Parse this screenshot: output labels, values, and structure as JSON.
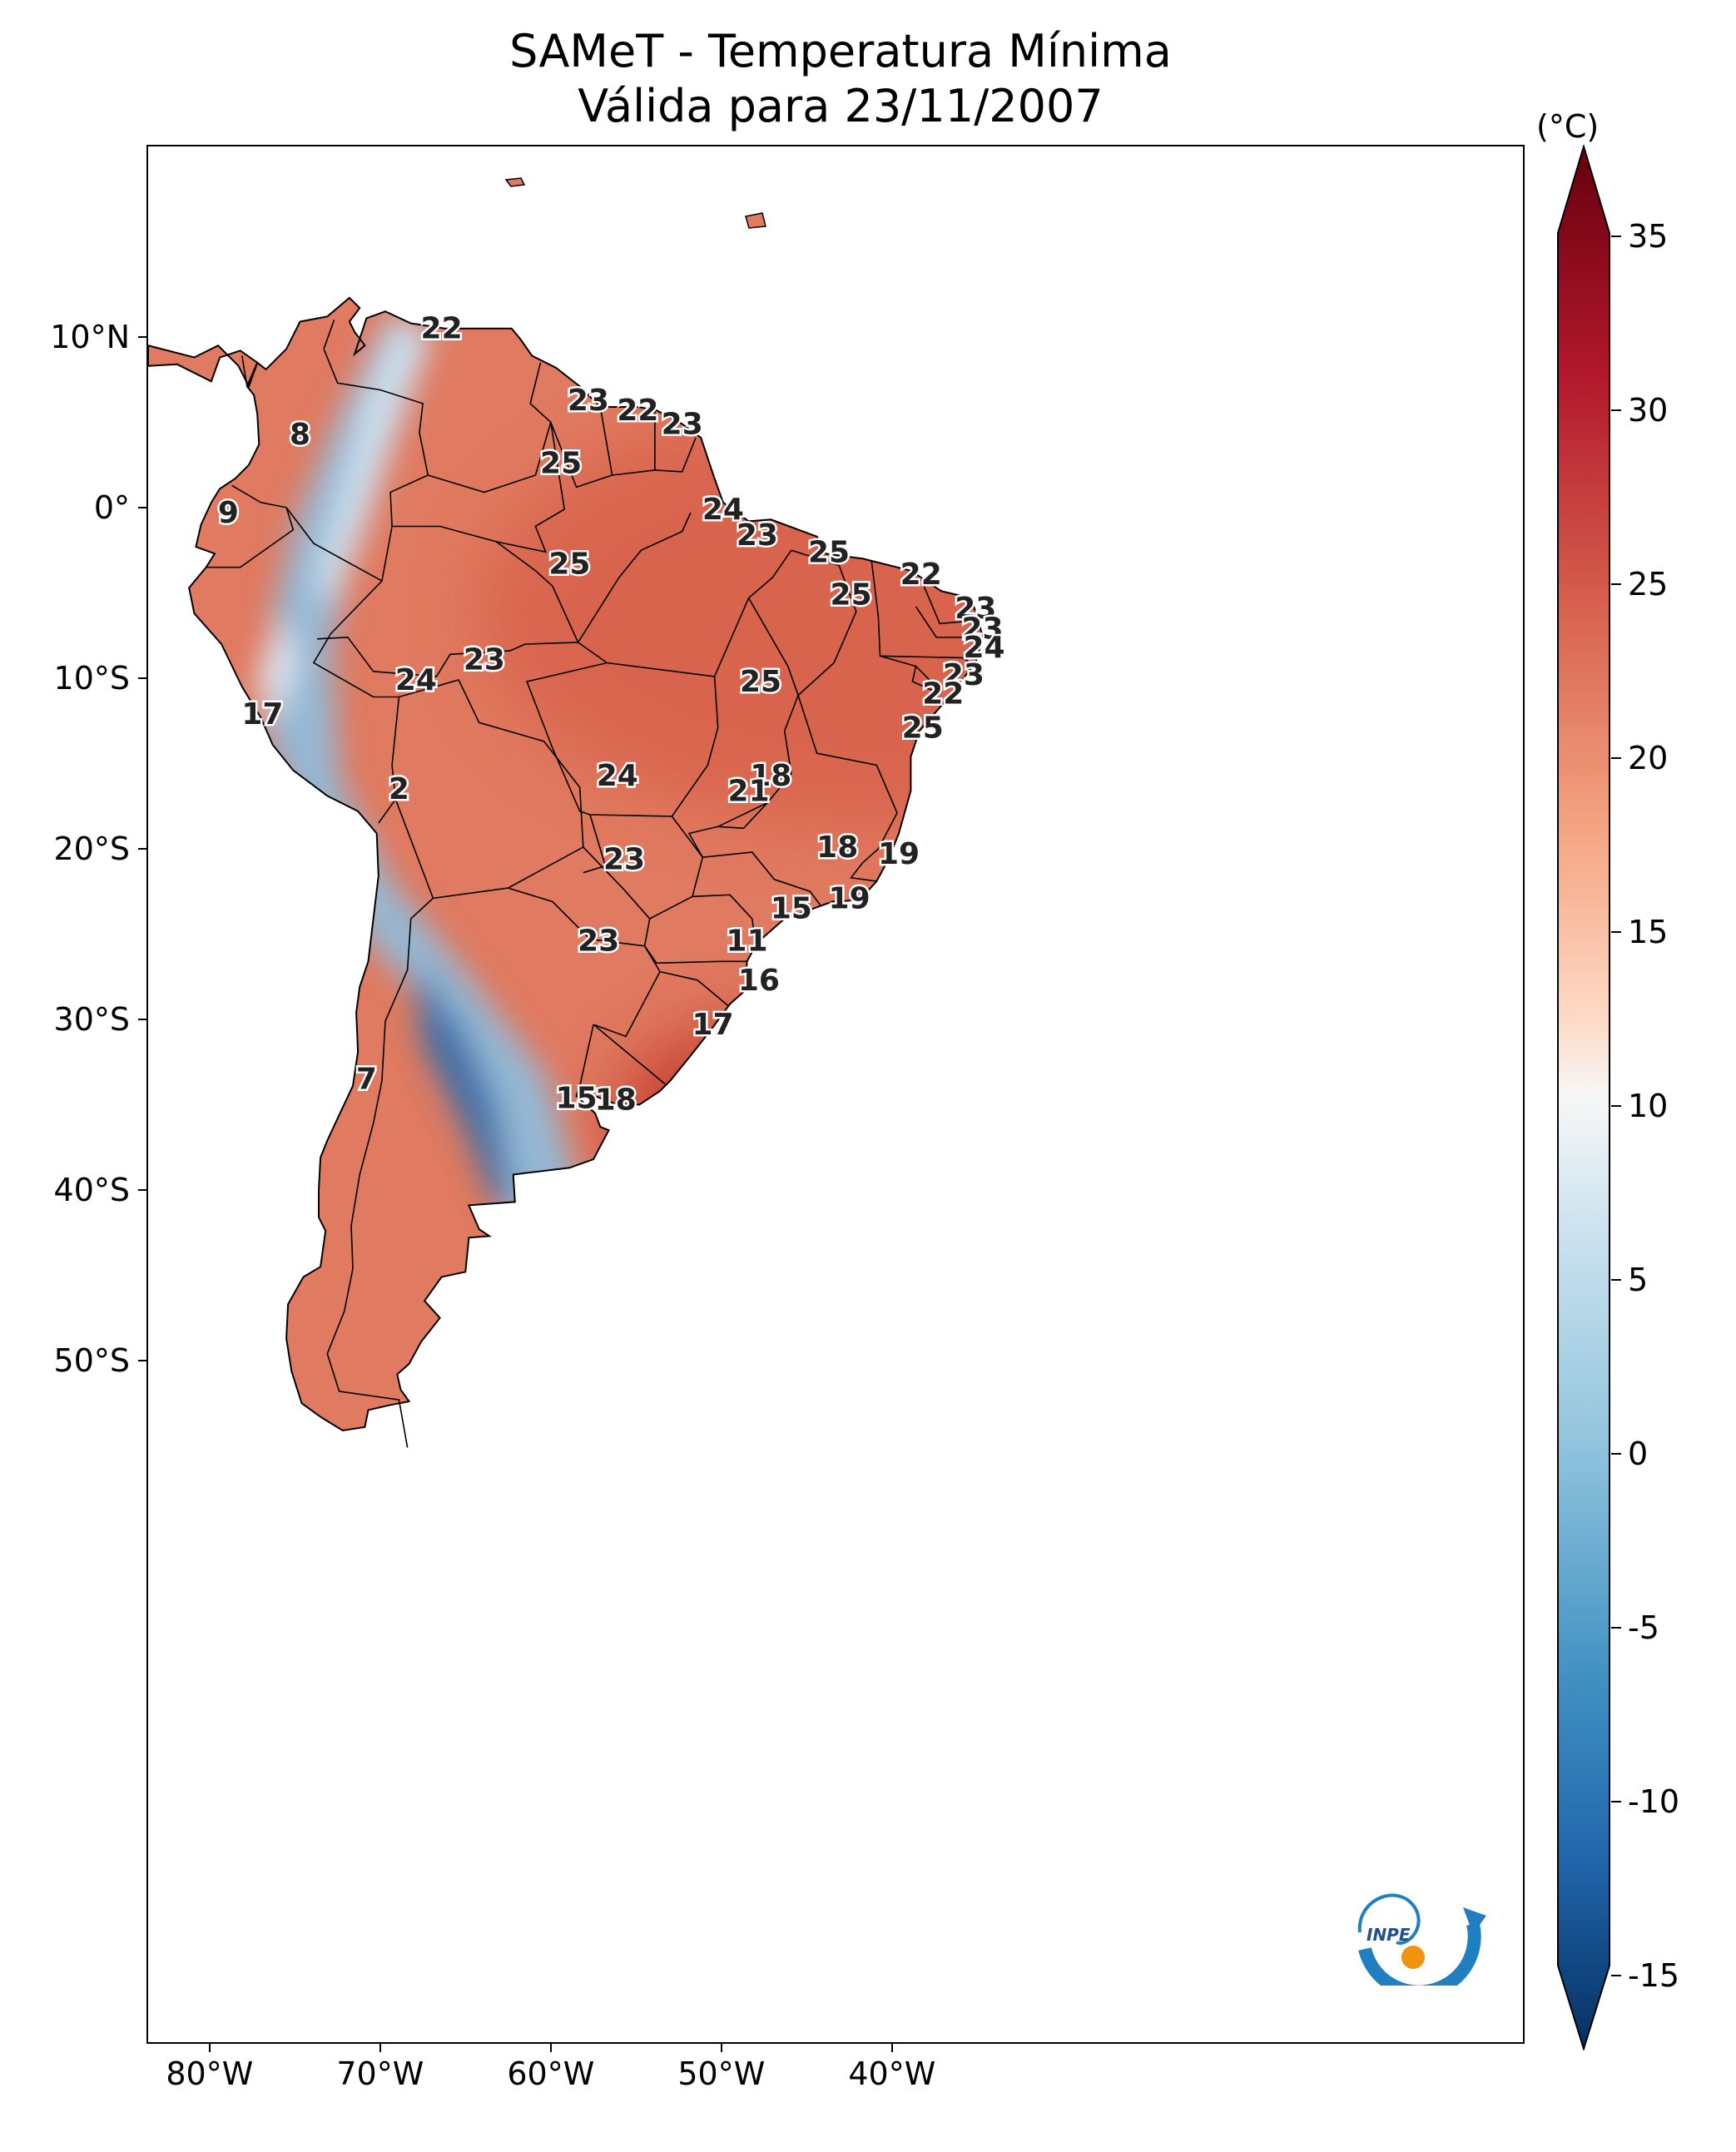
{
  "title": {
    "line1": "SAMeT - Temperatura Mínima",
    "line2": "Válida para 23/11/2007"
  },
  "colorbar": {
    "unit": "(°C)",
    "ticks": [
      "35",
      "30",
      "25",
      "20",
      "15",
      "10",
      "5",
      "0",
      "-5",
      "-10",
      "-15"
    ],
    "colormap": "RdBu_r",
    "colors": {
      "min": "#08306b",
      "cold": "#2c6fb0",
      "cool": "#9ac8e0",
      "neutral": "#f7f7f7",
      "mild": "#f6b89b",
      "warm": "#e4765c",
      "hot": "#c0392b",
      "max": "#67000d"
    }
  },
  "axes": {
    "lat_labels": [
      "10°N",
      "0°",
      "10°S",
      "20°S",
      "30°S",
      "40°S",
      "50°S"
    ],
    "lon_labels": [
      "80°W",
      "70°W",
      "60°W",
      "50°W",
      "40°W"
    ]
  },
  "map": {
    "region": "South America",
    "ocean_color": "#ffffff",
    "border_color": "#000000",
    "point_labels": [
      {
        "value": "22",
        "lon": -66.5,
        "lat": 10.6
      },
      {
        "value": "23",
        "lon": -57.9,
        "lat": 6.4
      },
      {
        "value": "22",
        "lon": -55.0,
        "lat": 5.8
      },
      {
        "value": "23",
        "lon": -52.4,
        "lat": 5.0
      },
      {
        "value": "8",
        "lon": -74.8,
        "lat": 4.4
      },
      {
        "value": "25",
        "lon": -59.5,
        "lat": 2.7
      },
      {
        "value": "24",
        "lon": -50.0,
        "lat": 0.0
      },
      {
        "value": "9",
        "lon": -79.0,
        "lat": -0.2
      },
      {
        "value": "23",
        "lon": -48.0,
        "lat": -1.5
      },
      {
        "value": "25",
        "lon": -59.0,
        "lat": -3.2
      },
      {
        "value": "25",
        "lon": -43.8,
        "lat": -2.5
      },
      {
        "value": "22",
        "lon": -38.4,
        "lat": -3.8
      },
      {
        "value": "25",
        "lon": -42.5,
        "lat": -5.0
      },
      {
        "value": "23",
        "lon": -35.2,
        "lat": -5.8
      },
      {
        "value": "23",
        "lon": -34.8,
        "lat": -7.0
      },
      {
        "value": "24",
        "lon": -34.7,
        "lat": -8.1
      },
      {
        "value": "23",
        "lon": -64.0,
        "lat": -8.8
      },
      {
        "value": "24",
        "lon": -68.0,
        "lat": -10.0
      },
      {
        "value": "25",
        "lon": -47.8,
        "lat": -10.1
      },
      {
        "value": "23",
        "lon": -35.9,
        "lat": -9.7
      },
      {
        "value": "22",
        "lon": -37.1,
        "lat": -10.8
      },
      {
        "value": "17",
        "lon": -77.0,
        "lat": -12.0
      },
      {
        "value": "25",
        "lon": -38.3,
        "lat": -12.8
      },
      {
        "value": "24",
        "lon": -56.2,
        "lat": -15.6
      },
      {
        "value": "18",
        "lon": -47.2,
        "lat": -15.6
      },
      {
        "value": "21",
        "lon": -48.5,
        "lat": -16.5
      },
      {
        "value": "2",
        "lon": -69.0,
        "lat": -16.4
      },
      {
        "value": "18",
        "lon": -43.3,
        "lat": -19.8
      },
      {
        "value": "19",
        "lon": -39.7,
        "lat": -20.2
      },
      {
        "value": "23",
        "lon": -55.8,
        "lat": -20.5
      },
      {
        "value": "15",
        "lon": -46.0,
        "lat": -23.4
      },
      {
        "value": "19",
        "lon": -42.6,
        "lat": -22.8
      },
      {
        "value": "23",
        "lon": -57.3,
        "lat": -25.3
      },
      {
        "value": "11",
        "lon": -48.6,
        "lat": -25.3
      },
      {
        "value": "16",
        "lon": -47.9,
        "lat": -27.6
      },
      {
        "value": "17",
        "lon": -50.6,
        "lat": -30.2
      },
      {
        "value": "7",
        "lon": -70.9,
        "lat": -33.4
      },
      {
        "value": "15",
        "lon": -58.6,
        "lat": -34.5
      },
      {
        "value": "18",
        "lon": -56.3,
        "lat": -34.6
      }
    ]
  },
  "logo": {
    "text": "INPE",
    "colors": {
      "blue": "#1f7fc0",
      "orange": "#f0930f"
    }
  }
}
